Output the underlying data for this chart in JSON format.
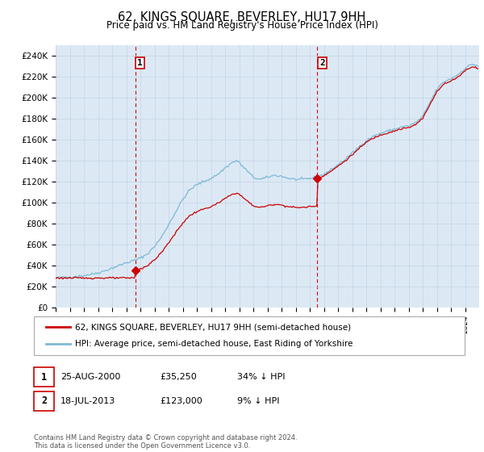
{
  "title": "62, KINGS SQUARE, BEVERLEY, HU17 9HH",
  "subtitle": "Price paid vs. HM Land Registry's House Price Index (HPI)",
  "legend_line1": "62, KINGS SQUARE, BEVERLEY, HU17 9HH (semi-detached house)",
  "legend_line2": "HPI: Average price, semi-detached house, East Riding of Yorkshire",
  "footer1": "Contains HM Land Registry data © Crown copyright and database right 2024.",
  "footer2": "This data is licensed under the Open Government Licence v3.0.",
  "annotation1_label": "1",
  "annotation1_date": "25-AUG-2000",
  "annotation1_price": "£35,250",
  "annotation1_hpi": "34% ↓ HPI",
  "annotation2_label": "2",
  "annotation2_date": "18-JUL-2013",
  "annotation2_price": "£123,000",
  "annotation2_hpi": "9% ↓ HPI",
  "sale1_year": 2000.63,
  "sale1_price": 35250,
  "sale2_year": 2013.54,
  "sale2_price": 123000,
  "hpi_color": "#7db9d8",
  "price_color": "#cc0000",
  "plot_bg_color": "#dce9f5",
  "grid_color": "#c8d8e8",
  "xmin": 1995,
  "xmax": 2025,
  "ymin": 0,
  "ymax": 250000,
  "ytick_vals": [
    0,
    20000,
    40000,
    60000,
    80000,
    100000,
    120000,
    140000,
    160000,
    180000,
    200000,
    220000,
    240000
  ]
}
